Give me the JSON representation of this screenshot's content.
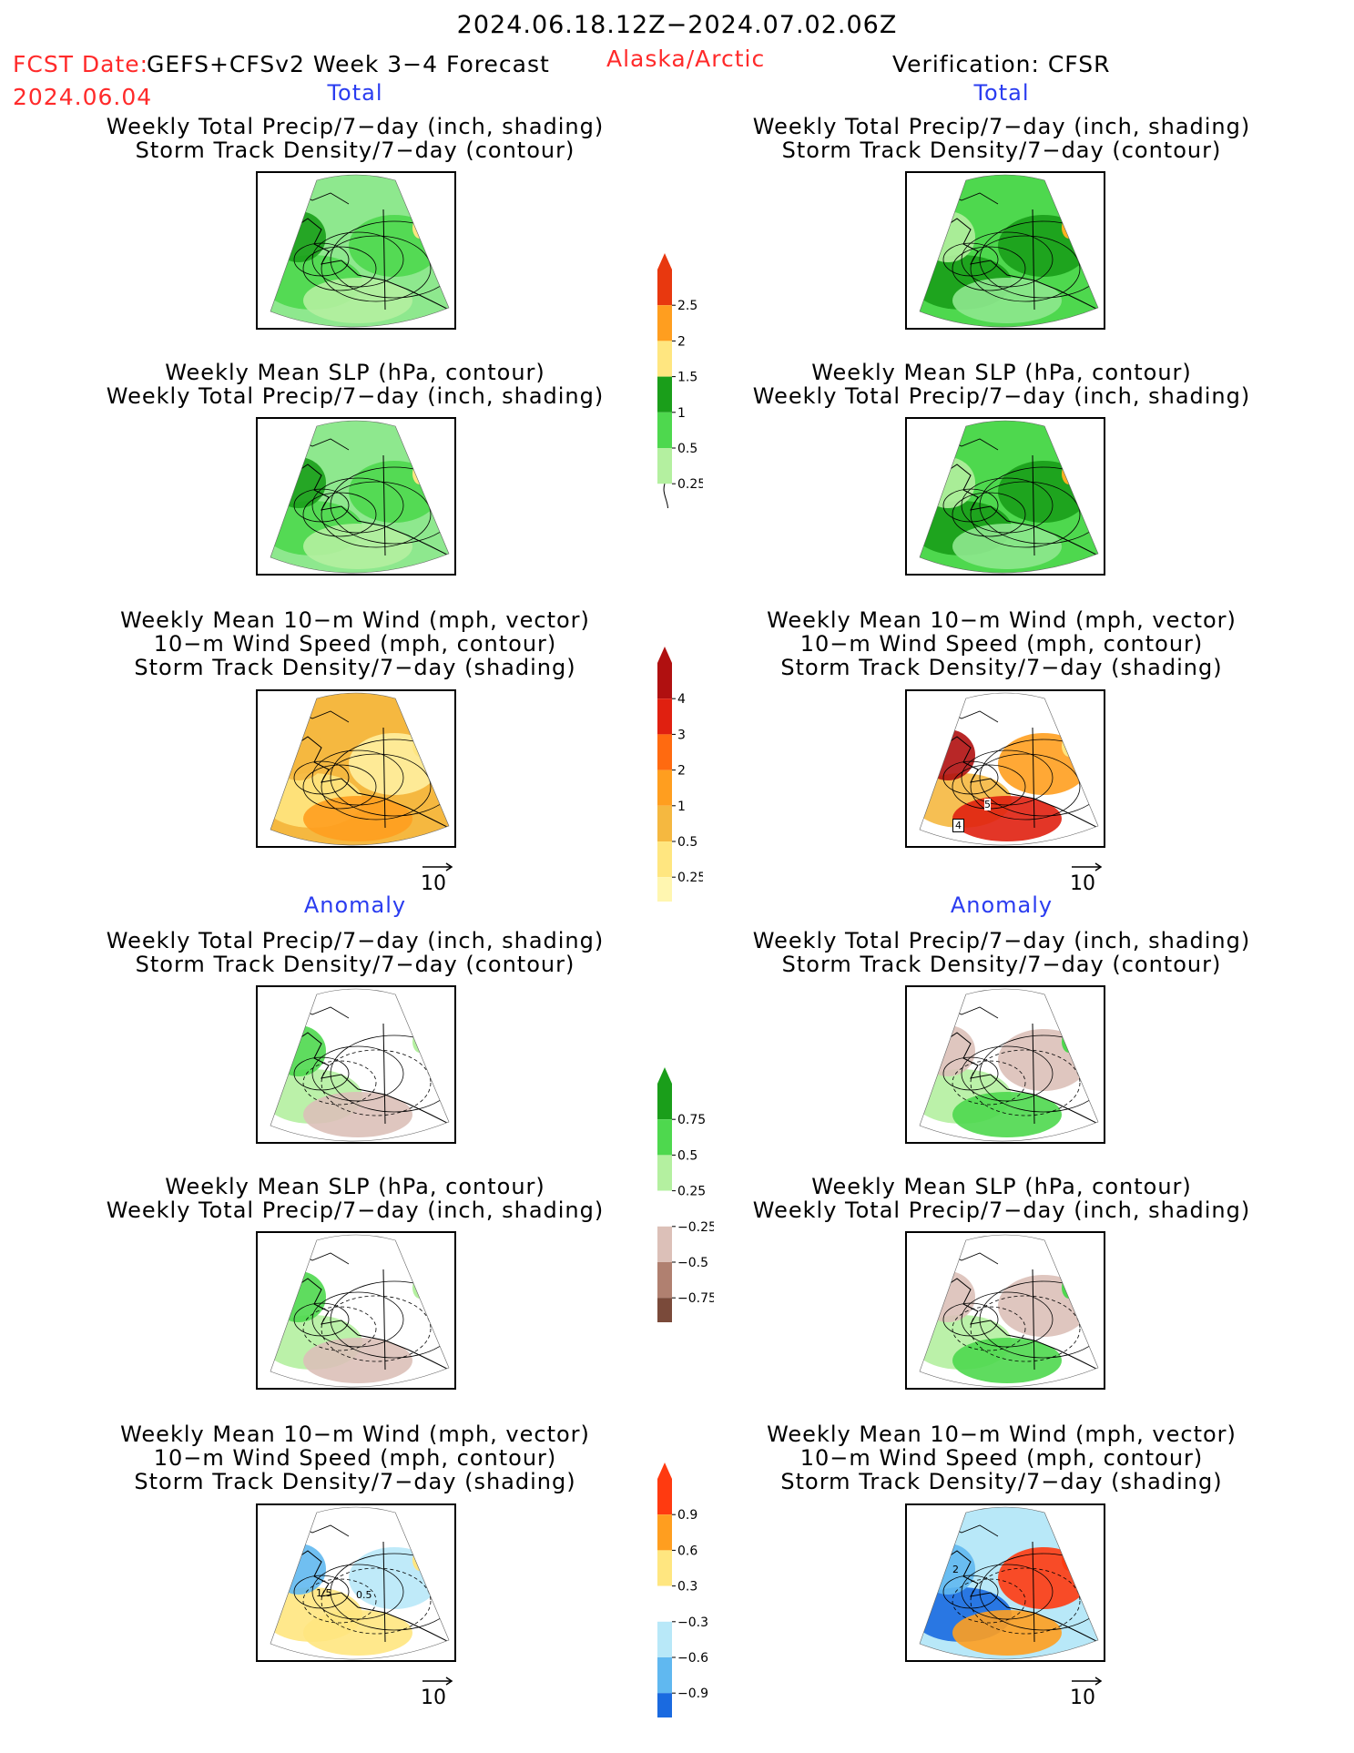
{
  "header": {
    "period": "2024.06.18.12Z−2024.07.02.06Z",
    "fcst_label": "FCST Date:",
    "model": "GEFS+CFSv2 Week 3−4 Forecast",
    "region": "Alaska/Arctic",
    "verification": "Verification: CFSR",
    "fcst_date": "2024.06.04"
  },
  "sections": {
    "total_left": "Total",
    "total_right": "Total",
    "anomaly_left": "Anomaly",
    "anomaly_right": "Anomaly"
  },
  "panels": {
    "precip_storm": [
      "Weekly Total Precip/7−day (inch, shading)",
      "Storm Track Density/7−day (contour)"
    ],
    "slp_precip": [
      "Weekly Mean SLP (hPa, contour)",
      "Weekly Total Precip/7−day (inch, shading)"
    ],
    "wind_storm": [
      "Weekly Mean 10−m Wind (mph, vector)",
      "10−m Wind Speed (mph, contour)",
      "Storm Track Density/7−day (shading)"
    ]
  },
  "vector_ref": "10",
  "colorbars": {
    "precip_total": {
      "labels": [
        "2.5",
        "2",
        "1.5",
        "1",
        "0.5",
        "0.25"
      ],
      "colors": [
        "#e8380f",
        "#ff9e1f",
        "#ffe680",
        "#1a9e1a",
        "#4ed84e",
        "#b4f0a0"
      ]
    },
    "storm_total": {
      "labels": [
        "4",
        "3",
        "2",
        "1",
        "0.5",
        "0.25"
      ],
      "colors": [
        "#b01010",
        "#e02010",
        "#ff6a10",
        "#ff9e1f",
        "#f5b840",
        "#ffe680",
        "#fff6b0"
      ]
    },
    "precip_anom": {
      "labels": [
        "0.75",
        "0.5",
        "0.25",
        "−0.25",
        "−0.5",
        "−0.75"
      ],
      "colors": [
        "#1a9e1a",
        "#4ed84e",
        "#b4f0a0",
        "#ffffff",
        "#dcc0b8",
        "#b08070",
        "#7a4a3a"
      ]
    },
    "storm_anom": {
      "labels": [
        "0.9",
        "0.6",
        "0.3",
        "−0.3",
        "−0.6",
        "−0.9"
      ],
      "colors": [
        "#ff3a10",
        "#ff9e1f",
        "#ffe680",
        "#ffffff",
        "#b8e8f8",
        "#60b8f0",
        "#1a6ae0"
      ]
    }
  },
  "map_labels": {
    "right_wind_total": [
      "5",
      "4"
    ],
    "left_wind_anom": [
      "1.5",
      "0.5"
    ],
    "right_wind_anom": [
      "2"
    ]
  }
}
